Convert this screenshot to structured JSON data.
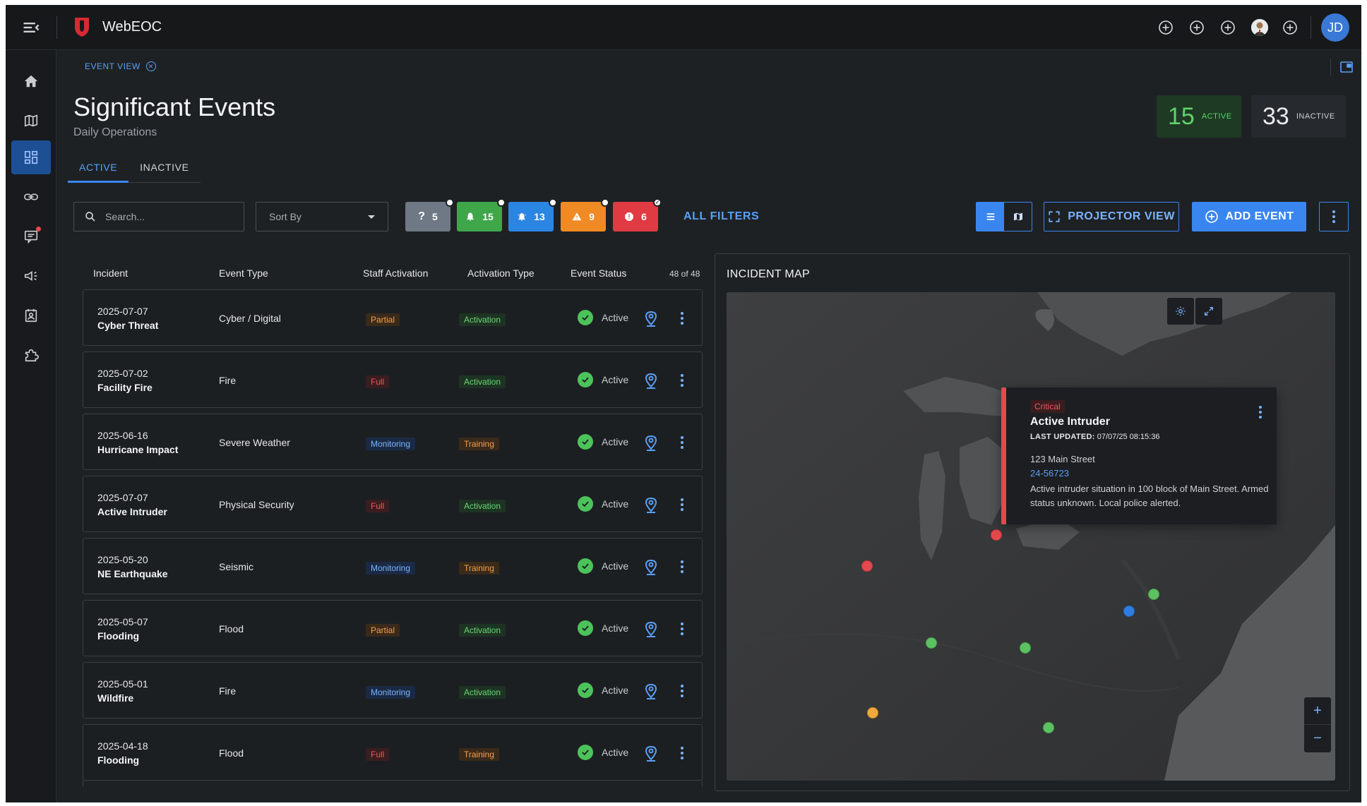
{
  "app": {
    "name": "WebEOC",
    "user_initials": "JD"
  },
  "breadcrumb": {
    "label": "EVENT VIEW"
  },
  "page": {
    "title": "Significant Events",
    "subtitle": "Daily Operations"
  },
  "counts": {
    "active": {
      "value": "15",
      "label": "ACTIVE"
    },
    "inactive": {
      "value": "33",
      "label": "INACTIVE"
    }
  },
  "tabs": [
    {
      "label": "ACTIVE"
    },
    {
      "label": "INACTIVE"
    }
  ],
  "filters": {
    "search_placeholder": "Search...",
    "sort_label": "Sort By",
    "chips": [
      {
        "icon": "question-icon",
        "count": "5",
        "color": "#6f7885"
      },
      {
        "icon": "bell-icon",
        "count": "15",
        "color": "#3fa64a"
      },
      {
        "icon": "bell-ring-icon",
        "count": "13",
        "color": "#2b86e3"
      },
      {
        "icon": "warning-icon",
        "count": "9",
        "color": "#f08a24"
      },
      {
        "icon": "alert-icon",
        "count": "6",
        "color": "#e03a43"
      }
    ],
    "all_filters": "ALL FILTERS"
  },
  "toolbar": {
    "projector_label": "PROJECTOR VIEW",
    "add_event_label": "ADD EVENT"
  },
  "table": {
    "headers": [
      "Incident",
      "Event Type",
      "Staff Activation",
      "Activation Type",
      "Event Status"
    ],
    "count_label": "48 of 48",
    "rows": [
      {
        "date": "2025-07-07",
        "name": "Cyber Threat",
        "type": "Cyber / Digital",
        "staff": "Partial",
        "activation": "Activation",
        "status": "Active"
      },
      {
        "date": "2025-07-02",
        "name": "Facility Fire",
        "type": "Fire",
        "staff": "Full",
        "activation": "Activation",
        "status": "Active"
      },
      {
        "date": "2025-06-16",
        "name": "Hurricane Impact",
        "type": "Severe Weather",
        "staff": "Monitoring",
        "activation": "Training",
        "status": "Active"
      },
      {
        "date": "2025-07-07",
        "name": "Active Intruder",
        "type": "Physical Security",
        "staff": "Full",
        "activation": "Activation",
        "status": "Active"
      },
      {
        "date": "2025-05-20",
        "name": "NE Earthquake",
        "type": "Seismic",
        "staff": "Monitoring",
        "activation": "Training",
        "status": "Active"
      },
      {
        "date": "2025-05-07",
        "name": "Flooding",
        "type": "Flood",
        "staff": "Partial",
        "activation": "Activation",
        "status": "Active"
      },
      {
        "date": "2025-05-01",
        "name": "Wildfire",
        "type": "Fire",
        "staff": "Monitoring",
        "activation": "Activation",
        "status": "Active"
      },
      {
        "date": "2025-04-18",
        "name": "Flooding",
        "type": "Flood",
        "staff": "Full",
        "activation": "Training",
        "status": "Active"
      }
    ]
  },
  "map": {
    "title": "INCIDENT MAP",
    "popup": {
      "severity": "Critical",
      "title": "Active Intruder",
      "updated_label": "LAST UPDATED:",
      "updated_value": "07/07/25 08:15:36",
      "address": "123 Main Street",
      "id": "24-56723",
      "description": "Active intruder situation in 100 block of Main Street. Armed status unknown.  Local police alerted."
    },
    "marker_colors": {
      "critical": "#e5484d",
      "active": "#5cc261",
      "info": "#2f7de1",
      "warning": "#f2a93b"
    }
  }
}
